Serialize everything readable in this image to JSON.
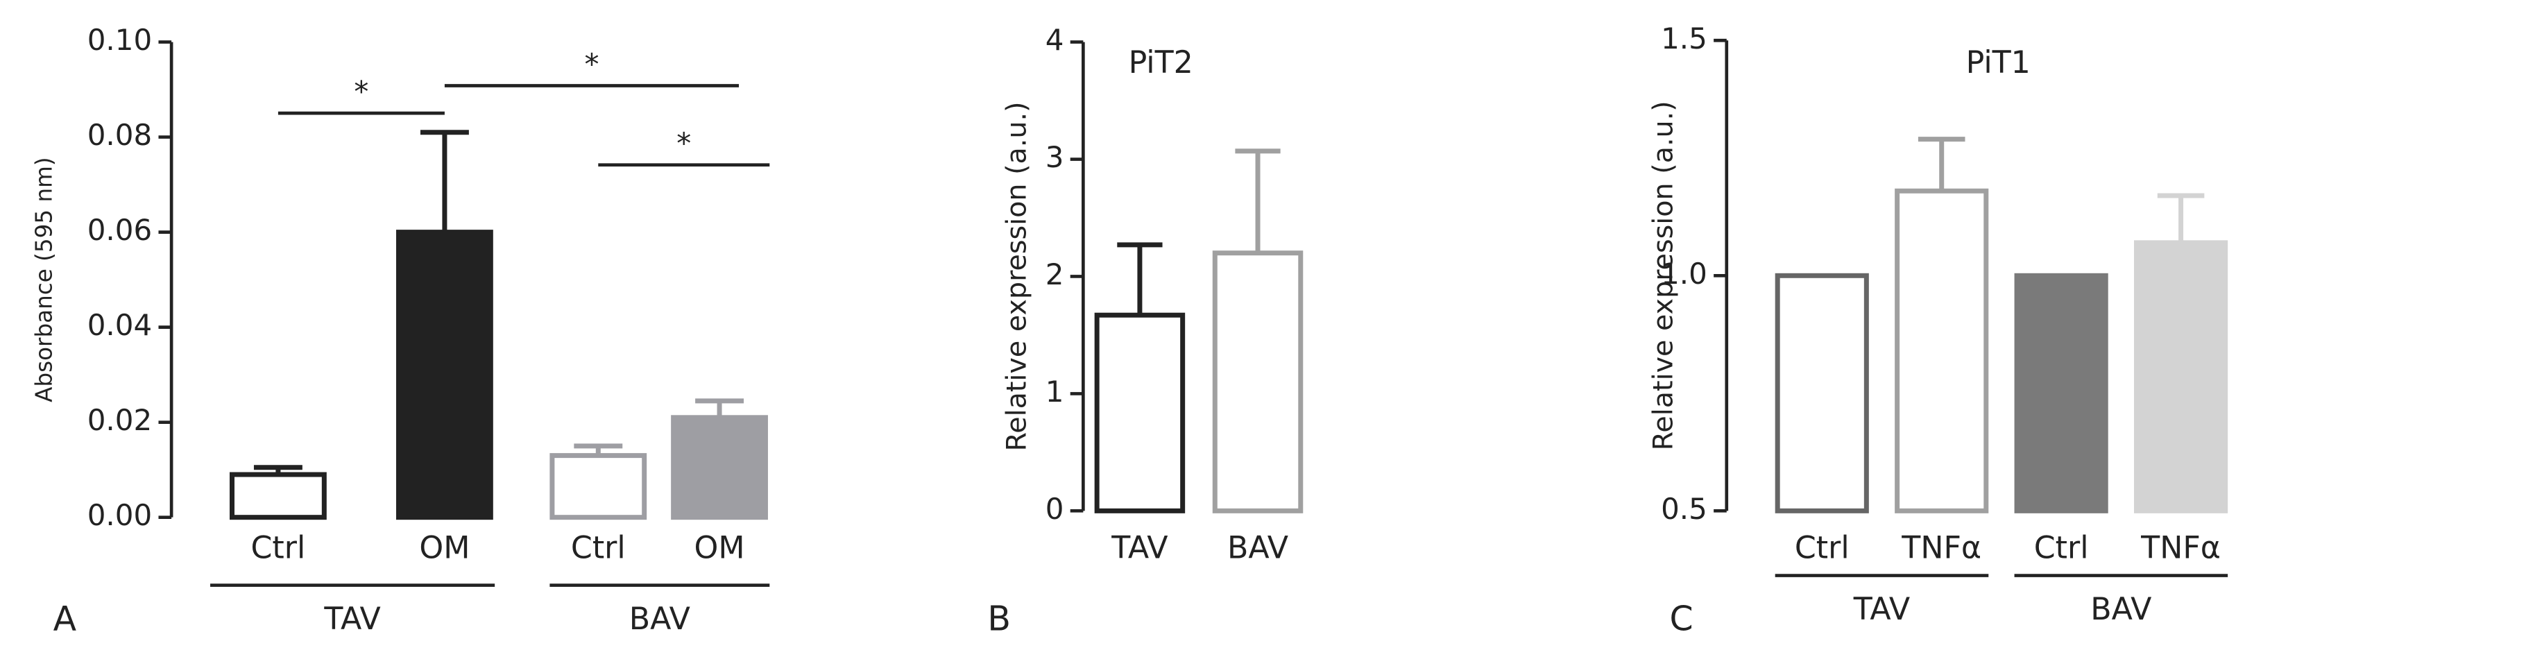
{
  "chart_data": [
    {
      "type": "bar",
      "panel_label": "A",
      "y_label": "Absorbance (595 nm)",
      "categories": [
        "Ctrl",
        "OM",
        "Ctrl",
        "OM"
      ],
      "groups": [
        "TAV",
        "BAV"
      ],
      "values": [
        0.009,
        0.06,
        0.013,
        0.021
      ],
      "errors": [
        0.0015,
        0.021,
        0.002,
        0.0035
      ],
      "fills": [
        "#ffffff",
        "#222222",
        "#ffffff",
        "#9e9ea3"
      ],
      "strokes": [
        "#222222",
        "#222222",
        "#9e9ea3",
        "#9e9ea3"
      ],
      "ylim": [
        0,
        0.1
      ],
      "yticks": [
        {
          "value": 0,
          "label": "0.00"
        },
        {
          "value": 0.02,
          "label": "0.02"
        },
        {
          "value": 0.04,
          "label": "0.04"
        },
        {
          "value": 0.06,
          "label": "0.06"
        },
        {
          "value": 0.08,
          "label": "0.08"
        },
        {
          "value": 0.1,
          "label": "0.10"
        }
      ],
      "significance": [
        "*",
        "*",
        "*"
      ]
    },
    {
      "type": "bar",
      "panel_label": "B",
      "title": "PiT2",
      "y_label": "Relative expression (a.u.)",
      "categories": [
        "TAV",
        "BAV"
      ],
      "values": [
        1.67,
        2.2
      ],
      "errors": [
        0.6,
        0.87
      ],
      "fills": [
        "#ffffff",
        "#ffffff"
      ],
      "strokes": [
        "#222222",
        "#a0a0a0"
      ],
      "ylim": [
        0,
        4
      ],
      "yticks": [
        0,
        1,
        2,
        3,
        4
      ]
    },
    {
      "type": "bar",
      "panel_label": "C",
      "title": "PiT1",
      "y_label": "Relative expression (a.u.)",
      "categories": [
        "Ctrl",
        "TNFα",
        "Ctrl",
        "TNFα"
      ],
      "groups": [
        "TAV",
        "BAV"
      ],
      "values": [
        1.0,
        1.18,
        1.0,
        1.07
      ],
      "errors": [
        null,
        0.11,
        null,
        0.1
      ],
      "fills": [
        "#ffffff",
        "#ffffff",
        "#7a7a7a",
        "#d3d3d3"
      ],
      "strokes": [
        "#666666",
        "#a0a0a0",
        "#7a7a7a",
        "#d3d3d3"
      ],
      "ylim": [
        0.5,
        1.5
      ],
      "yticks": [
        {
          "value": 0.5,
          "label": "0.5"
        },
        {
          "value": 1.0,
          "label": "1.0"
        },
        {
          "value": 1.5,
          "label": "1.5"
        }
      ]
    }
  ]
}
